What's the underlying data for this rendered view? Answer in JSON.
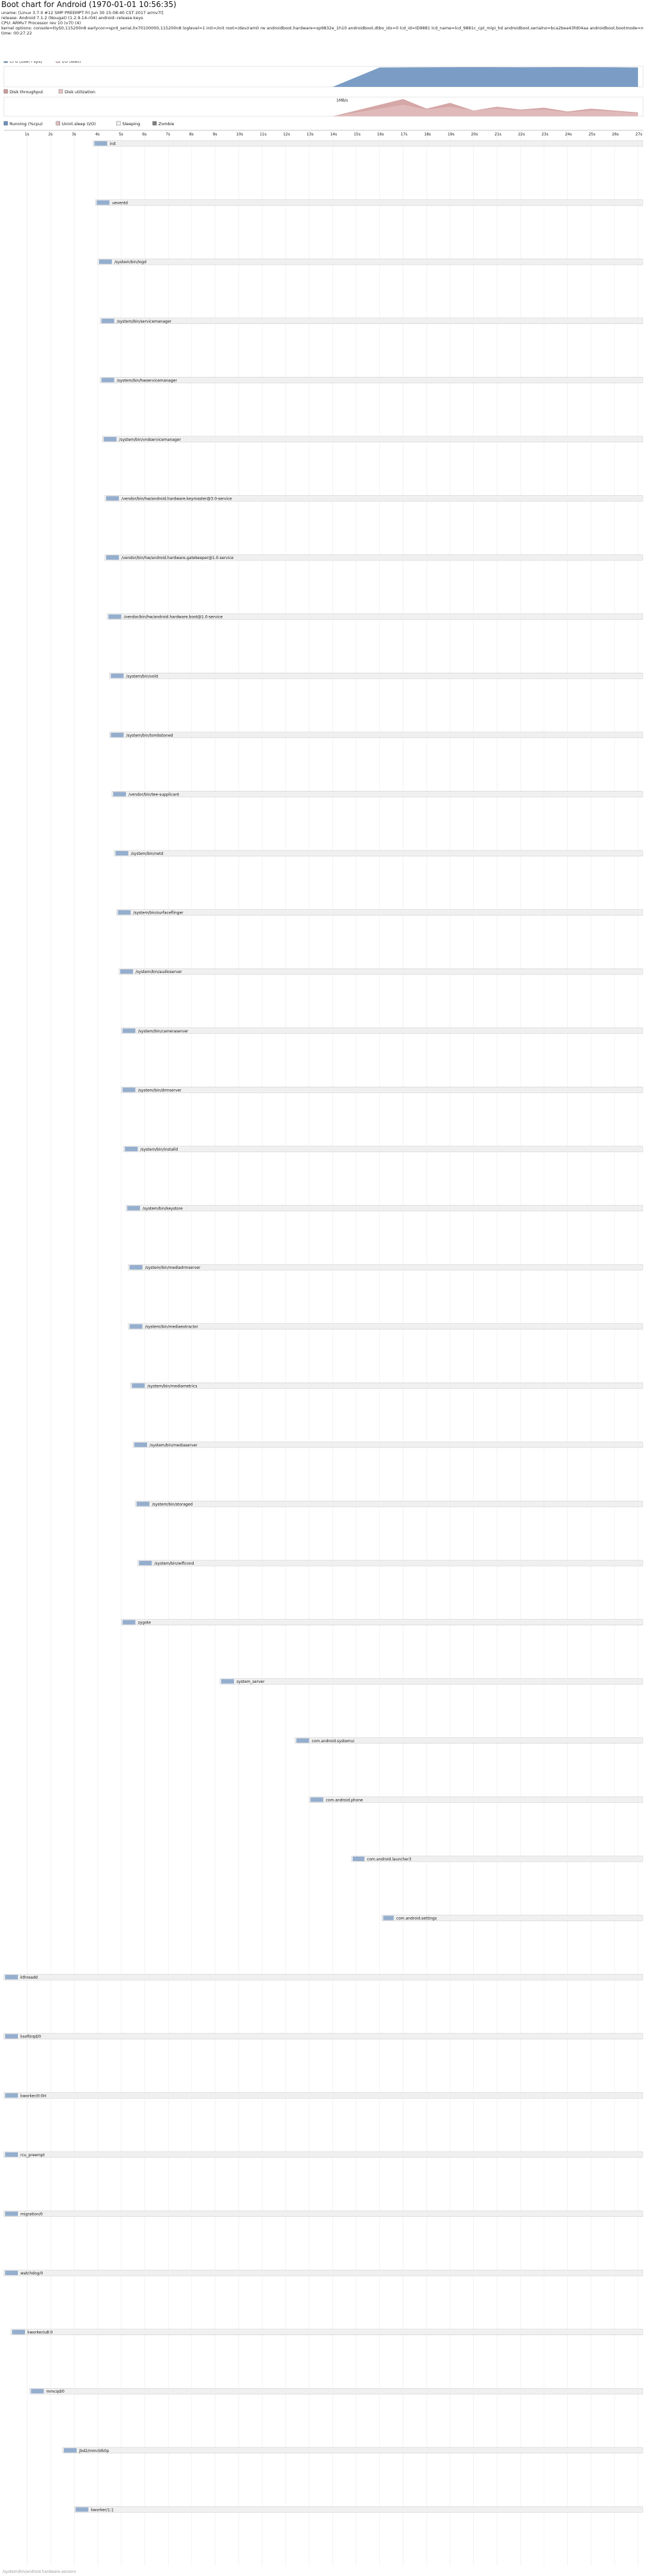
{
  "header": {
    "title": "Boot chart for Android (1970-01-01 10:56:35)",
    "uname": "uname: [Linux 3.7.0 #12 SMP PREEMPT Fri Jun 30 15:08:40 CST 2017 armv7l]",
    "release": "release: Android 7.1.2 (Nougat) (1.2.9.14-r04) android::release-keys",
    "cpu": "CPU: ARMv7 Processor rev 10 (v7l) (4)",
    "kernel_options": "kernel options: console=ttyS0,115200n8 earlycon=sprd_serial,0x70100000,115200n8 loglevel=1 init=/init root=/dev/ram0 rw androidboot.hardware=sp9832e_1h10 androidboot.dtbo_idx=0 lcd_id=ID9881 lcd_name=lcd_9881c_cpt_mipi_hd androidboot.serialno=bca2bea43fd04aa androidboot.bootmode=normal androidboot.selinux=permissive androidboot.verifiedbootstate=orange",
    "time": "time: 00:27.22"
  },
  "chart_data": [
    {
      "type": "area",
      "title": "",
      "legend": [
        {
          "name": "CPU [user+sys]",
          "color": "#6d92bf"
        },
        {
          "name": "I/O (wait)",
          "color": "#e0bebe"
        }
      ],
      "x": [
        0,
        2,
        4,
        6,
        8,
        10,
        12,
        14,
        16,
        18,
        20,
        22,
        24,
        26,
        27
      ],
      "series": [
        {
          "name": "CPU [user+sys]",
          "values": [
            0,
            0,
            0,
            0,
            0,
            0,
            0,
            0,
            95,
            96,
            97,
            96,
            97,
            96,
            95
          ]
        },
        {
          "name": "I/O (wait)",
          "values": [
            0,
            0,
            0,
            0,
            0,
            0,
            0,
            0,
            0,
            0,
            0,
            0,
            0,
            0,
            0
          ]
        }
      ],
      "ylim": [
        0,
        100
      ]
    },
    {
      "type": "area",
      "title": "",
      "legend": [
        {
          "name": "Disk throughput",
          "color": "#d09d9d"
        },
        {
          "name": "Disk utilization",
          "color": "#e7c7c7"
        }
      ],
      "annotation": "1MB/s",
      "x": [
        0,
        2,
        4,
        6,
        8,
        10,
        12,
        14,
        16,
        17,
        18,
        19,
        20,
        21,
        22,
        23,
        24,
        25,
        26,
        27
      ],
      "series": [
        {
          "name": "Disk throughput",
          "values": [
            0,
            0,
            0,
            0,
            0,
            0,
            0,
            0,
            60,
            90,
            40,
            70,
            30,
            50,
            35,
            45,
            25,
            40,
            30,
            20
          ]
        },
        {
          "name": "Disk utilization",
          "values": [
            0,
            0,
            0,
            0,
            0,
            0,
            0,
            0,
            40,
            60,
            35,
            50,
            30,
            40,
            30,
            35,
            20,
            30,
            25,
            15
          ]
        }
      ],
      "ylim": [
        0,
        100
      ]
    },
    {
      "type": "bar",
      "title": "",
      "legend": [
        {
          "name": "Running (%cpu)",
          "color": "#6d92bf"
        },
        {
          "name": "Unint.sleep (I/O)",
          "color": "#e0bebe"
        },
        {
          "name": "Sleeping",
          "color": "#f0f0f0"
        },
        {
          "name": "Zombie",
          "color": "#808080"
        }
      ],
      "x_ticks": [
        "1s",
        "2s",
        "3s",
        "4s",
        "5s",
        "6s",
        "7s",
        "8s",
        "9s",
        "10s",
        "11s",
        "12s",
        "13s",
        "14s",
        "15s",
        "16s",
        "17s",
        "18s",
        "19s",
        "20s",
        "21s",
        "22s",
        "23s",
        "24s",
        "25s",
        "26s",
        "27s"
      ],
      "xlim": [
        0,
        27.22
      ],
      "processes": [
        {
          "name": "init",
          "start": 3.8,
          "end": 27.2
        },
        {
          "name": "ueventd",
          "start": 3.9,
          "end": 27.2
        },
        {
          "name": "/system/bin/logd",
          "start": 4.0,
          "end": 27.2
        },
        {
          "name": "/system/bin/servicemanager",
          "start": 4.1,
          "end": 27.2
        },
        {
          "name": "/system/bin/hwservicemanager",
          "start": 4.1,
          "end": 27.2
        },
        {
          "name": "/system/bin/vndservicemanager",
          "start": 4.2,
          "end": 27.2
        },
        {
          "name": "/vendor/bin/hw/android.hardware.keymaster@3.0-service",
          "start": 4.3,
          "end": 27.2
        },
        {
          "name": "/vendor/bin/hw/android.hardware.gatekeeper@1.0-service",
          "start": 4.3,
          "end": 27.2
        },
        {
          "name": "/vendor/bin/hw/android.hardware.boot@1.0-service",
          "start": 4.4,
          "end": 27.2
        },
        {
          "name": "/system/bin/vold",
          "start": 4.5,
          "end": 27.2
        },
        {
          "name": "/system/bin/tombstoned",
          "start": 4.5,
          "end": 27.2
        },
        {
          "name": "/vendor/bin/tee-supplicant",
          "start": 4.6,
          "end": 27.2
        },
        {
          "name": "/system/bin/netd",
          "start": 4.7,
          "end": 27.2
        },
        {
          "name": "/system/bin/surfaceflinger",
          "start": 4.8,
          "end": 27.2
        },
        {
          "name": "/system/bin/audioserver",
          "start": 4.9,
          "end": 27.2
        },
        {
          "name": "/system/bin/cameraserver",
          "start": 5.0,
          "end": 27.2
        },
        {
          "name": "/system/bin/drmserver",
          "start": 5.0,
          "end": 27.2
        },
        {
          "name": "/system/bin/installd",
          "start": 5.1,
          "end": 27.2
        },
        {
          "name": "/system/bin/keystore",
          "start": 5.2,
          "end": 27.2
        },
        {
          "name": "/system/bin/mediadrmserver",
          "start": 5.3,
          "end": 27.2
        },
        {
          "name": "/system/bin/mediaextractor",
          "start": 5.3,
          "end": 27.2
        },
        {
          "name": "/system/bin/mediametrics",
          "start": 5.4,
          "end": 27.2
        },
        {
          "name": "/system/bin/mediaserver",
          "start": 5.5,
          "end": 27.2
        },
        {
          "name": "/system/bin/storaged",
          "start": 5.6,
          "end": 27.2
        },
        {
          "name": "/system/bin/wificond",
          "start": 5.7,
          "end": 27.2
        },
        {
          "name": "zygote",
          "start": 5.0,
          "end": 27.2
        },
        {
          "name": "system_server",
          "start": 9.2,
          "end": 27.2
        },
        {
          "name": "com.android.systemui",
          "start": 12.4,
          "end": 27.2
        },
        {
          "name": "com.android.phone",
          "start": 13.0,
          "end": 27.2
        },
        {
          "name": "com.android.launcher3",
          "start": 14.8,
          "end": 27.2
        },
        {
          "name": "com.android.settings",
          "start": 16.1,
          "end": 27.2
        },
        {
          "name": "kthreadd",
          "start": 0.0,
          "end": 27.2
        },
        {
          "name": "ksoftirqd/0",
          "start": 0.0,
          "end": 27.2
        },
        {
          "name": "kworker/0:0H",
          "start": 0.0,
          "end": 27.2
        },
        {
          "name": "rcu_preempt",
          "start": 0.0,
          "end": 27.2
        },
        {
          "name": "migration/0",
          "start": 0.0,
          "end": 27.2
        },
        {
          "name": "watchdog/0",
          "start": 0.0,
          "end": 27.2
        },
        {
          "name": "kworker/u8:0",
          "start": 0.3,
          "end": 27.2
        },
        {
          "name": "mmcqd/0",
          "start": 1.1,
          "end": 27.2
        },
        {
          "name": "jbd2/mmcblk0p",
          "start": 2.5,
          "end": 27.2
        },
        {
          "name": "kworker/1:1",
          "start": 3.0,
          "end": 27.2
        }
      ]
    }
  ],
  "footer": "/system/bin/android.hardware.sensors"
}
